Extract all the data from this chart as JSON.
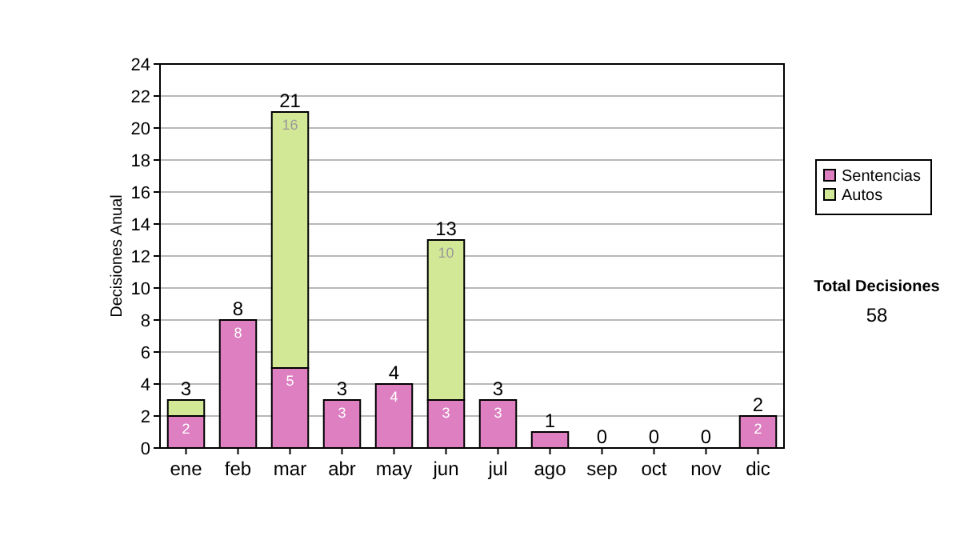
{
  "chart_data": {
    "type": "bar",
    "stacked": true,
    "ylabel": "Decisiones Anual",
    "categories": [
      "ene",
      "feb",
      "mar",
      "abr",
      "may",
      "jun",
      "jul",
      "ago",
      "sep",
      "oct",
      "nov",
      "dic"
    ],
    "series": [
      {
        "name": "Sentencias",
        "color": "#dd7fc0",
        "values": [
          2,
          8,
          5,
          3,
          4,
          3,
          3,
          1,
          0,
          0,
          0,
          2
        ],
        "value_labels": [
          "2",
          "8",
          "5",
          "3",
          "4",
          "3",
          "3",
          null,
          null,
          null,
          null,
          "2"
        ]
      },
      {
        "name": "Autos",
        "color": "#d3e897",
        "values": [
          1,
          0,
          16,
          0,
          0,
          10,
          0,
          0,
          0,
          0,
          0,
          0
        ],
        "value_labels": [
          null,
          null,
          "16",
          null,
          null,
          "10",
          null,
          null,
          null,
          null,
          null,
          null
        ]
      }
    ],
    "totals": [
      "3",
      "8",
      "21",
      "3",
      "4",
      "13",
      "3",
      "1",
      "0",
      "0",
      "0",
      "2"
    ],
    "ylim": [
      0,
      24
    ],
    "yticks": [
      0,
      2,
      4,
      6,
      8,
      10,
      12,
      14,
      16,
      18,
      20,
      22,
      24
    ],
    "grid": "y",
    "legend": "right",
    "annotations": [
      "Total Decisiones",
      "58"
    ]
  }
}
